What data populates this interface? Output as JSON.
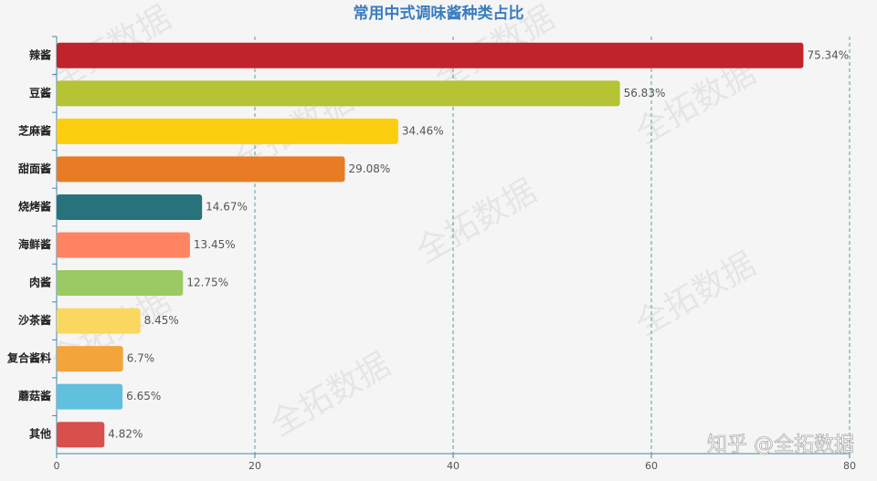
{
  "chart_data": {
    "type": "bar",
    "orientation": "horizontal",
    "title": "常用中式调味酱种类占比",
    "categories": [
      "辣酱",
      "豆酱",
      "芝麻酱",
      "甜面酱",
      "烧烤酱",
      "海鲜酱",
      "肉酱",
      "沙茶酱",
      "复合酱料",
      "蘑菇酱",
      "其他"
    ],
    "values": [
      75.34,
      56.83,
      34.46,
      29.08,
      14.67,
      13.45,
      12.75,
      8.45,
      6.7,
      6.65,
      4.82
    ],
    "value_labels": [
      "75.34%",
      "56.83%",
      "34.46%",
      "29.08%",
      "14.67%",
      "13.45%",
      "12.75%",
      "8.45%",
      "6.7%",
      "6.65%",
      "4.82%"
    ],
    "colors": [
      "#c1232b",
      "#b5c334",
      "#fcce10",
      "#e87c25",
      "#27727b",
      "#fe8463",
      "#9bca63",
      "#fad860",
      "#f3a43b",
      "#60c0dd",
      "#d7504b"
    ],
    "xlim": [
      0,
      80
    ],
    "xticks": [
      0,
      20,
      40,
      60,
      80
    ],
    "grid": true,
    "watermark": "全拓数据",
    "credit": "知乎 @全拓数据"
  }
}
